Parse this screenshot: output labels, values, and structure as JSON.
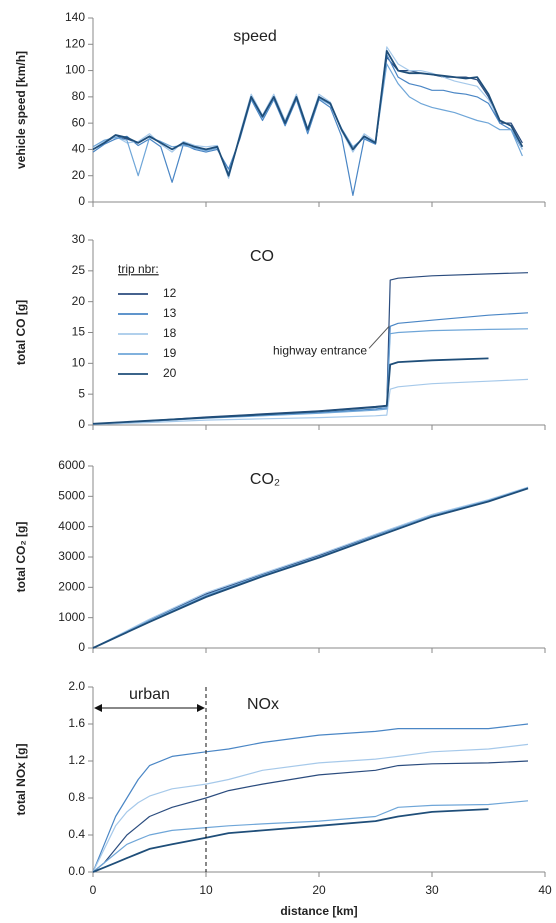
{
  "chart_data": [
    {
      "type": "line",
      "title": "speed",
      "y_label": "vehicle speed [km/h]",
      "xlim": [
        0,
        40
      ],
      "ylim": [
        0,
        140
      ],
      "yticks": [
        0,
        20,
        40,
        60,
        80,
        100,
        120,
        140
      ],
      "x": [
        0,
        1,
        2,
        3,
        4,
        5,
        6,
        7,
        8,
        9,
        10,
        11,
        12,
        13,
        14,
        15,
        16,
        17,
        18,
        19,
        20,
        21,
        22,
        23,
        24,
        25,
        26,
        27,
        28,
        29,
        30,
        31,
        32,
        33,
        34,
        35,
        36,
        37,
        38
      ],
      "series": [
        {
          "name": "12",
          "color": "#2b4c7e",
          "values": [
            40,
            45,
            50,
            48,
            45,
            50,
            45,
            40,
            45,
            42,
            40,
            42,
            20,
            50,
            80,
            65,
            80,
            60,
            80,
            55,
            80,
            75,
            55,
            40,
            50,
            45,
            110,
            100,
            100,
            98,
            97,
            95,
            95,
            95,
            93,
            80,
            60,
            60,
            45
          ]
        },
        {
          "name": "13",
          "color": "#4a86c5",
          "values": [
            38,
            44,
            48,
            50,
            43,
            48,
            42,
            15,
            44,
            40,
            38,
            40,
            25,
            48,
            78,
            62,
            78,
            58,
            78,
            52,
            78,
            72,
            50,
            5,
            48,
            44,
            112,
            95,
            90,
            88,
            85,
            85,
            83,
            82,
            80,
            75,
            60,
            55,
            40
          ]
        },
        {
          "name": "18",
          "color": "#a6c9ea",
          "values": [
            40,
            46,
            50,
            45,
            46,
            52,
            44,
            38,
            46,
            43,
            42,
            43,
            18,
            52,
            82,
            66,
            82,
            62,
            82,
            56,
            82,
            76,
            54,
            38,
            52,
            46,
            118,
            105,
            100,
            100,
            98,
            95,
            92,
            90,
            88,
            78,
            62,
            58,
            40
          ]
        },
        {
          "name": "19",
          "color": "#6fa6d8",
          "values": [
            42,
            47,
            49,
            47,
            20,
            49,
            46,
            42,
            43,
            41,
            39,
            41,
            22,
            50,
            79,
            64,
            79,
            61,
            79,
            54,
            79,
            74,
            56,
            42,
            49,
            45,
            105,
            90,
            80,
            75,
            72,
            70,
            68,
            65,
            62,
            60,
            55,
            55,
            35
          ]
        },
        {
          "name": "20",
          "color": "#1f4e79",
          "values": [
            40,
            45,
            51,
            49,
            45,
            50,
            45,
            40,
            45,
            42,
            40,
            42,
            20,
            50,
            80,
            65,
            80,
            60,
            80,
            55,
            80,
            75,
            55,
            40,
            50,
            45,
            115,
            100,
            98,
            98,
            97,
            96,
            95,
            94,
            95,
            82,
            62,
            58,
            42
          ]
        }
      ]
    },
    {
      "type": "line",
      "title": "CO",
      "y_label": "total CO [g]",
      "xlim": [
        0,
        40
      ],
      "ylim": [
        0,
        30
      ],
      "yticks": [
        0,
        5,
        10,
        15,
        20,
        25,
        30
      ],
      "legend_title": "trip nbr:",
      "legend": "upper left",
      "annotations": [
        {
          "text": "highway entrance",
          "x": 26.2,
          "y": 16
        }
      ],
      "x": [
        0,
        5,
        10,
        15,
        20,
        25,
        26,
        26.3,
        27,
        30,
        35,
        38.5
      ],
      "series": [
        {
          "name": "12",
          "color": "#2b4c7e",
          "values": [
            0.2,
            0.7,
            1.3,
            1.8,
            2.3,
            3.0,
            3.2,
            23.5,
            23.8,
            24.2,
            24.5,
            24.7
          ]
        },
        {
          "name": "13",
          "color": "#4a86c5",
          "values": [
            0.2,
            0.6,
            1.2,
            1.6,
            2.0,
            2.6,
            2.8,
            16.0,
            16.5,
            17.0,
            17.8,
            18.2
          ]
        },
        {
          "name": "18",
          "color": "#a6c9ea",
          "values": [
            0.1,
            0.4,
            0.8,
            1.0,
            1.2,
            1.5,
            1.6,
            5.8,
            6.2,
            6.7,
            7.1,
            7.4
          ]
        },
        {
          "name": "19",
          "color": "#6fa6d8",
          "values": [
            0.2,
            0.6,
            1.1,
            1.5,
            1.9,
            2.4,
            2.6,
            14.8,
            15.0,
            15.3,
            15.5,
            15.6
          ]
        },
        {
          "name": "20",
          "color": "#1f4e79",
          "values": [
            0.2,
            0.7,
            1.2,
            1.7,
            2.2,
            2.9,
            3.1,
            9.8,
            10.2,
            10.5,
            10.8,
            null
          ]
        }
      ]
    },
    {
      "type": "line",
      "title": "CO₂",
      "y_label": "total CO₂ [g]",
      "xlim": [
        0,
        40
      ],
      "ylim": [
        0,
        6000
      ],
      "yticks": [
        0,
        1000,
        2000,
        3000,
        4000,
        5000,
        6000
      ],
      "x": [
        0,
        5,
        10,
        15,
        20,
        25,
        30,
        35,
        38.5
      ],
      "series": [
        {
          "name": "12",
          "color": "#2b4c7e",
          "values": [
            0,
            920,
            1780,
            2420,
            3050,
            3720,
            4380,
            4870,
            5290
          ]
        },
        {
          "name": "13",
          "color": "#4a86c5",
          "values": [
            0,
            880,
            1700,
            2380,
            2990,
            3680,
            4340,
            4840,
            5270
          ]
        },
        {
          "name": "18",
          "color": "#a6c9ea",
          "values": [
            0,
            950,
            1820,
            2460,
            3080,
            3750,
            4400,
            4890,
            5300
          ]
        },
        {
          "name": "19",
          "color": "#6fa6d8",
          "values": [
            0,
            900,
            1740,
            2400,
            3010,
            3700,
            4360,
            4860,
            5280
          ]
        },
        {
          "name": "20",
          "color": "#1f4e79",
          "values": [
            0,
            860,
            1680,
            2360,
            2980,
            3660,
            4330,
            4830,
            5260
          ]
        }
      ]
    },
    {
      "type": "line",
      "title": "NOx",
      "y_label": "total NOx [g]",
      "x_label": "distance [km]",
      "xlim": [
        0,
        40
      ],
      "ylim": [
        0,
        2
      ],
      "xticks": [
        0,
        10,
        20,
        30,
        40
      ],
      "yticks": [
        {
          "value": 0,
          "label": "0.0"
        },
        {
          "value": 0.4,
          "label": "0.4"
        },
        {
          "value": 0.8,
          "label": "0.8"
        },
        {
          "value": 1.2,
          "label": "1.2"
        },
        {
          "value": 1.6,
          "label": "1.6"
        },
        {
          "value": 2,
          "label": "2.0"
        }
      ],
      "annotations": [
        {
          "text": "urban",
          "x": [
            0,
            10
          ]
        }
      ],
      "x": [
        0,
        1,
        2,
        3,
        4,
        5,
        7,
        10,
        12,
        15,
        20,
        25,
        27,
        30,
        35,
        38.5
      ],
      "series": [
        {
          "name": "12",
          "color": "#2b4c7e",
          "values": [
            0,
            0.1,
            0.25,
            0.4,
            0.5,
            0.6,
            0.7,
            0.8,
            0.88,
            0.95,
            1.05,
            1.1,
            1.15,
            1.17,
            1.18,
            1.2
          ]
        },
        {
          "name": "13",
          "color": "#4a86c5",
          "values": [
            0,
            0.3,
            0.6,
            0.8,
            1.0,
            1.15,
            1.25,
            1.3,
            1.33,
            1.4,
            1.48,
            1.52,
            1.55,
            1.55,
            1.55,
            1.6
          ]
        },
        {
          "name": "18",
          "color": "#a6c9ea",
          "values": [
            0,
            0.25,
            0.5,
            0.65,
            0.75,
            0.82,
            0.9,
            0.95,
            1.0,
            1.1,
            1.18,
            1.22,
            1.25,
            1.3,
            1.33,
            1.38
          ]
        },
        {
          "name": "19",
          "color": "#6fa6d8",
          "values": [
            0,
            0.1,
            0.2,
            0.3,
            0.35,
            0.4,
            0.45,
            0.48,
            0.5,
            0.52,
            0.55,
            0.6,
            0.7,
            0.72,
            0.73,
            0.77
          ]
        },
        {
          "name": "20",
          "color": "#1f4e79",
          "values": [
            0,
            0.05,
            0.1,
            0.15,
            0.2,
            0.25,
            0.3,
            0.37,
            0.42,
            0.45,
            0.5,
            0.55,
            0.6,
            0.65,
            0.68,
            null
          ]
        }
      ]
    }
  ]
}
